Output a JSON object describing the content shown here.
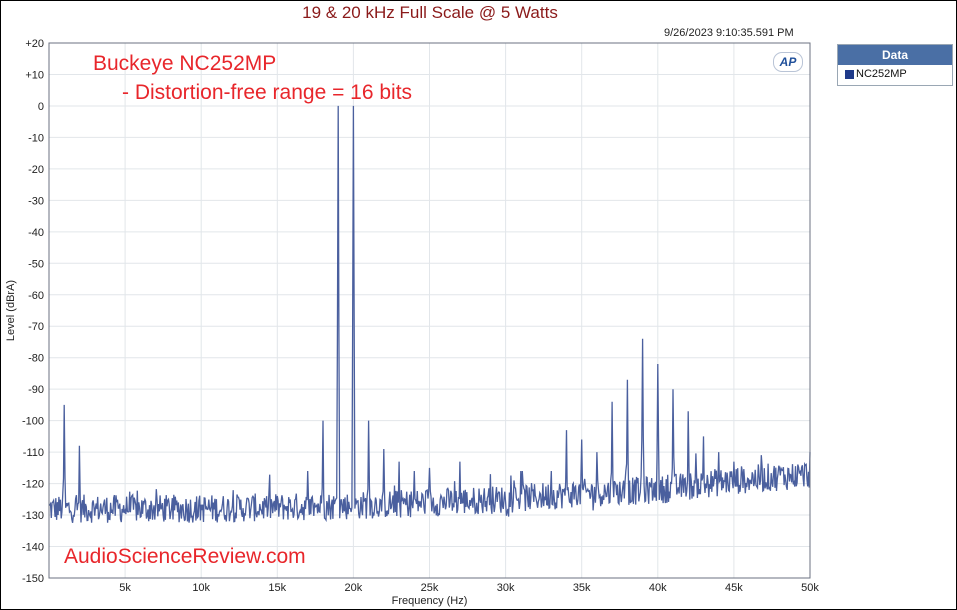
{
  "chart_data": {
    "type": "line",
    "title": "19 & 20 kHz Full Scale @ 5 Watts",
    "timestamp": "9/26/2023 9:10:35.591 PM",
    "xlabel": "Frequency (Hz)",
    "ylabel": "Level (dBrA)",
    "xlim": [
      0,
      50000
    ],
    "ylim": [
      -150,
      20
    ],
    "x_ticks": [
      5000,
      10000,
      15000,
      20000,
      25000,
      30000,
      35000,
      40000,
      45000,
      50000
    ],
    "x_tick_labels": [
      "5k",
      "10k",
      "15k",
      "20k",
      "25k",
      "30k",
      "35k",
      "40k",
      "45k",
      "50k"
    ],
    "y_ticks": [
      20,
      10,
      0,
      -10,
      -20,
      -30,
      -40,
      -50,
      -60,
      -70,
      -80,
      -90,
      -100,
      -110,
      -120,
      -130,
      -140,
      -150
    ],
    "y_tick_labels": [
      "+20",
      "+10",
      "0",
      "-10",
      "-20",
      "-30",
      "-40",
      "-50",
      "-60",
      "-70",
      "-80",
      "-90",
      "-100",
      "-110",
      "-120",
      "-130",
      "-140",
      "-150"
    ],
    "grid": true,
    "legend": {
      "title": "Data",
      "placement": "top-right outside"
    },
    "series": [
      {
        "name": "NC252MP",
        "color": "#4a5f9e",
        "noise_floor": [
          [
            0,
            -128
          ],
          [
            10000,
            -128
          ],
          [
            20000,
            -127
          ],
          [
            25000,
            -126
          ],
          [
            30000,
            -125
          ],
          [
            35000,
            -123
          ],
          [
            40000,
            -122
          ],
          [
            45000,
            -119
          ],
          [
            50000,
            -117
          ]
        ],
        "peaks": [
          [
            1000,
            -95
          ],
          [
            2000,
            -108
          ],
          [
            17000,
            -116
          ],
          [
            18000,
            -100
          ],
          [
            19000,
            0
          ],
          [
            20000,
            0
          ],
          [
            21000,
            -100
          ],
          [
            22000,
            -109
          ],
          [
            23000,
            -113
          ],
          [
            24000,
            -116
          ],
          [
            25000,
            -115
          ],
          [
            27000,
            -113
          ],
          [
            29000,
            -117
          ],
          [
            31000,
            -116
          ],
          [
            33000,
            -116
          ],
          [
            34000,
            -103
          ],
          [
            35000,
            -106
          ],
          [
            36000,
            -110
          ],
          [
            37000,
            -94
          ],
          [
            38000,
            -87
          ],
          [
            39000,
            -74
          ],
          [
            40000,
            -82
          ],
          [
            41000,
            -90
          ],
          [
            42000,
            -97
          ],
          [
            43000,
            -105
          ],
          [
            44000,
            -110
          ],
          [
            45000,
            -113
          ],
          [
            48000,
            -115
          ],
          [
            50000,
            -110
          ]
        ]
      }
    ],
    "annotations": [
      "Buckeye NC252MP",
      "- Distortion-free range = 16 bits"
    ],
    "watermark": "AudioScienceReview.com"
  },
  "logo_text": "AP"
}
